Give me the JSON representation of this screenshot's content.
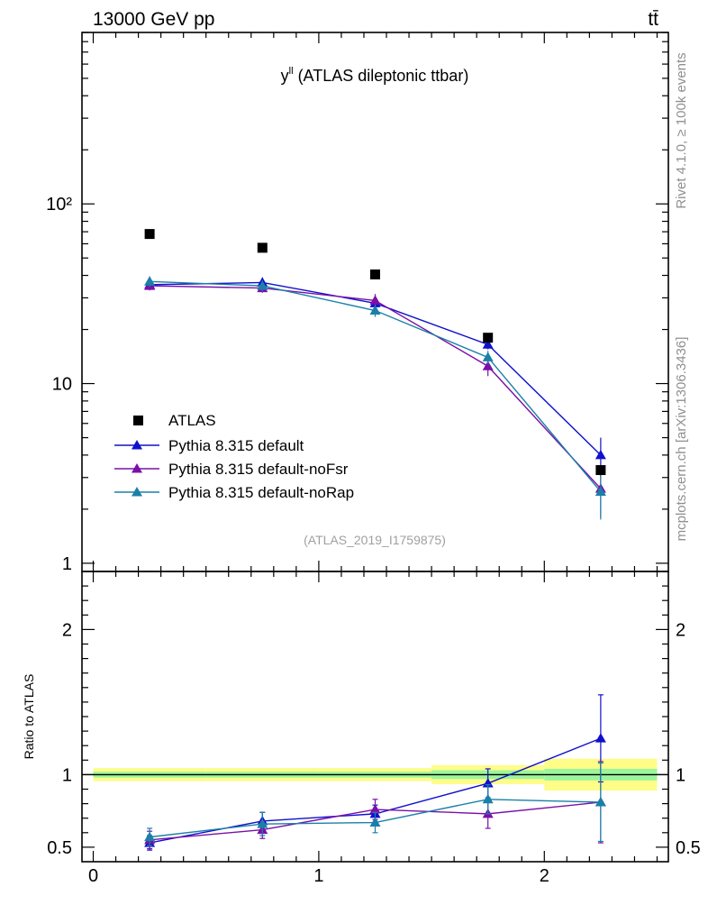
{
  "header": {
    "left": "13000 GeV pp",
    "right": "tt̄"
  },
  "side_labels": {
    "rivet": "Rivet 4.1.0, ≥ 100k events",
    "mcplots": "mcplots.cern.ch [arXiv:1306.3436]"
  },
  "chart_data": {
    "type": "line",
    "title_main": "y",
    "title_sup": "ll",
    "title_rest": " (ATLAS dileptonic ttbar)",
    "analysis_label": "(ATLAS_2019_I1759875)",
    "x_bins": [
      [
        0,
        0.5
      ],
      [
        0.5,
        1.0
      ],
      [
        1.0,
        1.5
      ],
      [
        1.5,
        2.0
      ],
      [
        2.0,
        2.5
      ]
    ],
    "x_centers": [
      0.25,
      0.75,
      1.25,
      1.75,
      2.25
    ],
    "xlim": [
      -0.05,
      2.55
    ],
    "x_ticks": [
      0,
      1,
      2
    ],
    "x_tick_labels": [
      "0",
      "1",
      "2"
    ],
    "main": {
      "yscale": "log",
      "ylim": [
        0.9,
        900
      ],
      "y_ticks": [
        1,
        10,
        100
      ],
      "y_tick_labels": [
        "1",
        "10",
        "10²"
      ]
    },
    "ratio": {
      "ylabel": "Ratio to ATLAS",
      "ylim": [
        0.4,
        2.4
      ],
      "y_ticks": [
        0.5,
        1,
        2
      ],
      "y_tick_labels": [
        "0.5",
        "1",
        "2"
      ]
    },
    "data": {
      "name": "ATLAS",
      "color": "#000000",
      "values": [
        68,
        57,
        40.5,
        18,
        3.3
      ],
      "err_stat": [
        0.02,
        0.02,
        0.02,
        0.03,
        0.04
      ],
      "err_tot": [
        0.045,
        0.045,
        0.045,
        0.065,
        0.11
      ]
    },
    "series": [
      {
        "name": "Pythia 8.315 default",
        "color": "#1010cc",
        "values": [
          35.5,
          36.5,
          28,
          16.5,
          4.0
        ],
        "errors": [
          2.0,
          2.5,
          2.0,
          1.0,
          1.0
        ],
        "ratio": [
          0.53,
          0.68,
          0.73,
          0.94,
          1.25
        ],
        "ratio_errors": [
          0.05,
          0.06,
          0.06,
          0.1,
          0.3
        ]
      },
      {
        "name": "Pythia 8.315 default-noFsr",
        "color": "#7a10a8",
        "values": [
          35,
          34,
          29,
          12.5,
          2.6
        ],
        "errors": [
          2.0,
          2.0,
          2.5,
          1.5,
          0.8
        ],
        "ratio": [
          0.55,
          0.62,
          0.76,
          0.73,
          0.81
        ],
        "ratio_errors": [
          0.06,
          0.06,
          0.07,
          0.1,
          0.28
        ]
      },
      {
        "name": "Pythia 8.315 default-noRap",
        "color": "#1a80a8",
        "values": [
          37,
          35,
          25.5,
          14,
          2.5
        ],
        "errors": [
          2.5,
          2.5,
          2.0,
          1.2,
          0.75
        ],
        "ratio": [
          0.57,
          0.66,
          0.67,
          0.83,
          0.81
        ],
        "ratio_errors": [
          0.06,
          0.08,
          0.07,
          0.1,
          0.27
        ]
      }
    ]
  }
}
